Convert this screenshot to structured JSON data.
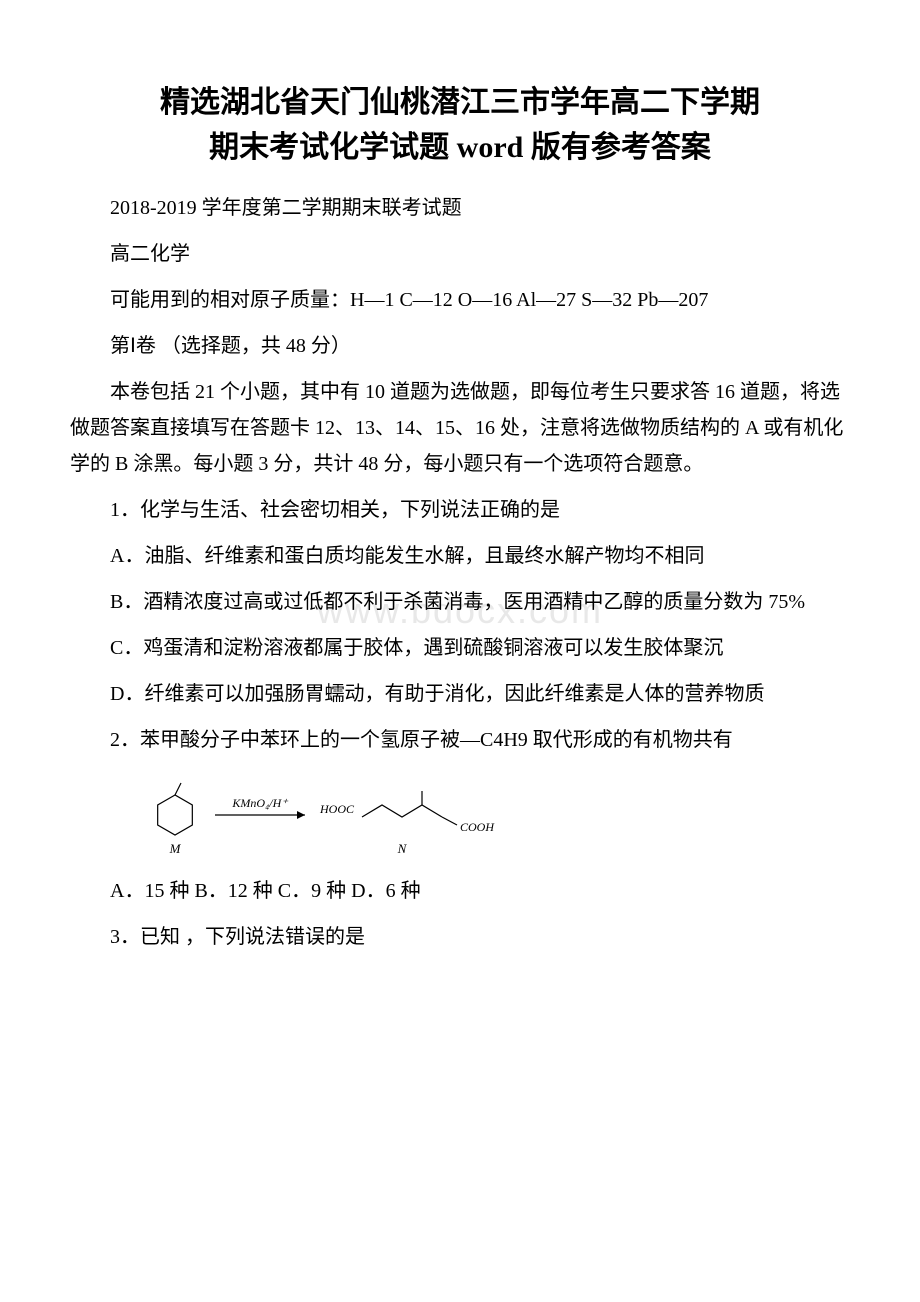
{
  "title_line1": "精选湖北省天门仙桃潜江三市学年高二下学期",
  "title_line2": "期末考试化学试题 word 版有参考答案",
  "subtitle": "2018-2019 学年度第二学期期末联考试题",
  "subject": "高二化学",
  "atomic_mass": "可能用到的相对原子质量：H—1 C—12 O—16 Al—27 S—32 Pb—207",
  "section1": "第Ⅰ卷 （选择题，共 48 分）",
  "instructions": "本卷包括 21 个小题，其中有 10 道题为选做题，即每位考生只要求答 16 道题，将选做题答案直接填写在答题卡 12、13、14、15、16 处，注意将选做物质结构的 A 或有机化学的 B 涂黑。每小题 3 分，共计 48 分，每小题只有一个选项符合题意。",
  "q1": "1．化学与生活、社会密切相关，下列说法正确的是",
  "q1a": "A．油脂、纤维素和蛋白质均能发生水解，且最终水解产物均不相同",
  "q1b": "B．酒精浓度过高或过低都不利于杀菌消毒，医用酒精中乙醇的质量分数为 75%",
  "q1c": "C．鸡蛋清和淀粉溶液都属于胶体，遇到硫酸铜溶液可以发生胶体聚沉",
  "q1d": "D．纤维素可以加强肠胃蠕动，有助于消化，因此纤维素是人体的营养物质",
  "q2": "2．苯甲酸分子中苯环上的一个氢原子被—C4H9 取代形成的有机物共有",
  "q2_options": "A．15 种 B．12 种 C．9 种 D．6 种",
  "q3": "3．已知 ，下列说法错误的是",
  "watermark_text": "www.bdocx.com",
  "diagram": {
    "reagent": "KMnO₄/H⁺",
    "label_m": "M",
    "label_n": "N",
    "hooc": "HOOC",
    "cooh": "COOH",
    "colors": {
      "stroke": "#000000",
      "text": "#000000"
    },
    "stroke_width": 1.2,
    "font_size_label": 12,
    "font_size_italic": 13
  }
}
